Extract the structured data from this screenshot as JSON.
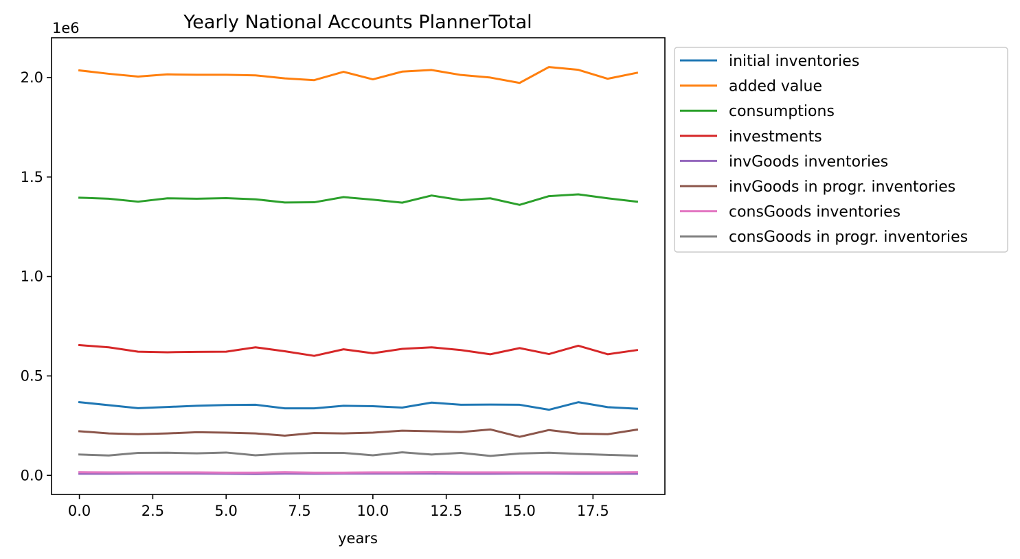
{
  "chart_data": {
    "type": "line",
    "title": "Yearly National Accounts PlannerTotal",
    "xlabel": "years",
    "ylabel": "",
    "y_offset_label": "1e6",
    "xlim": [
      -0.95,
      19.95
    ],
    "ylim": [
      -0.0958,
      2.2
    ],
    "x_ticks": [
      0.0,
      2.5,
      5.0,
      7.5,
      10.0,
      12.5,
      15.0,
      17.5
    ],
    "x_tick_labels": [
      "0.0",
      "2.5",
      "5.0",
      "7.5",
      "10.0",
      "12.5",
      "15.0",
      "17.5"
    ],
    "y_ticks": [
      0.0,
      0.5,
      1.0,
      1.5,
      2.0
    ],
    "y_tick_labels": [
      "0.0",
      "0.5",
      "1.0",
      "1.5",
      "2.0"
    ],
    "y_unit_multiplier": 1000000,
    "legend_position": "outside upper right",
    "grid": false,
    "x": [
      0,
      1,
      2,
      3,
      4,
      5,
      6,
      7,
      8,
      9,
      10,
      11,
      12,
      13,
      14,
      15,
      16,
      17,
      18,
      19
    ],
    "series": [
      {
        "name": "initial inventories",
        "color": "#1f77b4",
        "values": [
          0.368,
          0.353,
          0.338,
          0.344,
          0.35,
          0.354,
          0.355,
          0.337,
          0.337,
          0.35,
          0.348,
          0.341,
          0.366,
          0.355,
          0.356,
          0.355,
          0.33,
          0.368,
          0.343,
          0.335
        ]
      },
      {
        "name": "added value",
        "color": "#ff7f0e",
        "values": [
          2.036,
          2.019,
          2.005,
          2.016,
          2.014,
          2.014,
          2.011,
          1.996,
          1.987,
          2.029,
          1.991,
          2.03,
          2.038,
          2.013,
          2.0,
          1.973,
          2.053,
          2.039,
          1.994,
          2.024
        ]
      },
      {
        "name": "consumptions",
        "color": "#2ca02c",
        "values": [
          1.396,
          1.391,
          1.376,
          1.393,
          1.391,
          1.394,
          1.388,
          1.372,
          1.373,
          1.399,
          1.386,
          1.371,
          1.407,
          1.384,
          1.393,
          1.36,
          1.404,
          1.413,
          1.393,
          1.376
        ]
      },
      {
        "name": "investments",
        "color": "#d62728",
        "values": [
          0.655,
          0.644,
          0.622,
          0.619,
          0.621,
          0.622,
          0.644,
          0.624,
          0.601,
          0.634,
          0.614,
          0.636,
          0.644,
          0.63,
          0.609,
          0.64,
          0.61,
          0.652,
          0.609,
          0.63
        ]
      },
      {
        "name": "invGoods inventories",
        "color": "#9467bd",
        "values": [
          0.008,
          0.008,
          0.009,
          0.009,
          0.009,
          0.008,
          0.007,
          0.009,
          0.008,
          0.009,
          0.009,
          0.009,
          0.009,
          0.008,
          0.008,
          0.009,
          0.009,
          0.008,
          0.008,
          0.008
        ]
      },
      {
        "name": "invGoods in progr. inventories",
        "color": "#8c564b",
        "values": [
          0.222,
          0.211,
          0.207,
          0.211,
          0.217,
          0.215,
          0.211,
          0.2,
          0.213,
          0.211,
          0.215,
          0.225,
          0.222,
          0.218,
          0.231,
          0.194,
          0.228,
          0.21,
          0.207,
          0.23
        ]
      },
      {
        "name": "consGoods inventories",
        "color": "#e377c2",
        "values": [
          0.016,
          0.015,
          0.015,
          0.015,
          0.015,
          0.014,
          0.014,
          0.016,
          0.014,
          0.014,
          0.015,
          0.015,
          0.016,
          0.015,
          0.015,
          0.015,
          0.015,
          0.015,
          0.015,
          0.016
        ]
      },
      {
        "name": "consGoods in progr. inventories",
        "color": "#7f7f7f",
        "values": [
          0.105,
          0.1,
          0.113,
          0.114,
          0.111,
          0.115,
          0.101,
          0.11,
          0.113,
          0.113,
          0.101,
          0.116,
          0.105,
          0.113,
          0.098,
          0.11,
          0.114,
          0.108,
          0.103,
          0.099
        ]
      }
    ]
  }
}
